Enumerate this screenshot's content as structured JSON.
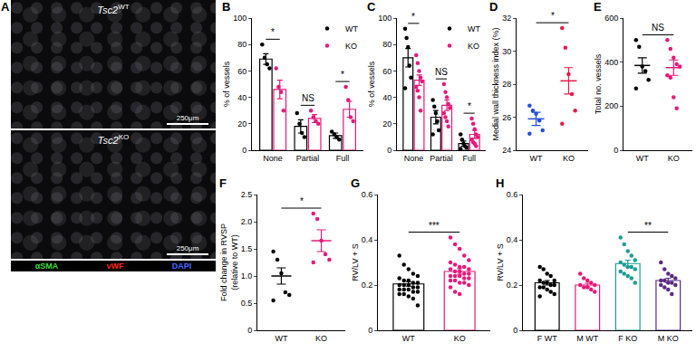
{
  "image_panel": {
    "panel": "A",
    "images": [
      {
        "gene": "Tsc2",
        "genotype": "WT",
        "scale_bar": "250μm"
      },
      {
        "gene": "Tsc2",
        "genotype": "KO",
        "scale_bar": "250μm"
      }
    ],
    "stains": [
      {
        "name": "αSMA",
        "color": "#3ddc3d"
      },
      {
        "name": "vWF",
        "color": "#ff2020"
      },
      {
        "name": "DAPI",
        "color": "#4a66ff"
      }
    ]
  },
  "chart_data": [
    {
      "panel": "B",
      "type": "bar",
      "ylabel": [
        "% of vessels"
      ],
      "categories": [
        "None",
        "Partial",
        "Full"
      ],
      "series": [
        {
          "name": "WT",
          "color": "#000000",
          "values": [
            69,
            18,
            11
          ],
          "errors": [
            4,
            5,
            2
          ],
          "points": [
            [
              80,
              70,
              65,
              62
            ],
            [
              28,
              20,
              13,
              10
            ],
            [
              14,
              12,
              10,
              8
            ]
          ]
        },
        {
          "name": "KO",
          "color": "#e6197a",
          "values": [
            46,
            24,
            31
          ],
          "errors": [
            7,
            3,
            6
          ],
          "points": [
            [
              62,
              48,
              44,
              30
            ],
            [
              30,
              25,
              22,
              20
            ],
            [
              48,
              38,
              25,
              22
            ]
          ]
        }
      ],
      "ylim": [
        0,
        100
      ],
      "yticks": [
        0,
        20,
        40,
        60,
        80,
        100
      ],
      "legend": "upper right",
      "significance": [
        {
          "category": "None",
          "text": "*"
        },
        {
          "category": "Partial",
          "text": "NS"
        },
        {
          "category": "Full",
          "text": "*"
        }
      ]
    },
    {
      "panel": "C",
      "type": "bar",
      "ylabel": [
        "% of vessels"
      ],
      "categories": [
        "None",
        "Partial",
        "Full"
      ],
      "series": [
        {
          "name": "WT",
          "color": "#000000",
          "values": [
            70,
            25,
            5
          ],
          "errors": [
            7,
            5,
            2
          ],
          "points": [
            [
              92,
              85,
              78,
              64,
              55,
              47
            ],
            [
              38,
              33,
              28,
              22,
              15,
              12
            ],
            [
              12,
              8,
              5,
              3,
              2,
              1
            ]
          ]
        },
        {
          "name": "KO",
          "color": "#e6197a",
          "values": [
            53,
            34,
            12
          ],
          "errors": [
            4,
            4,
            3
          ],
          "points": [
            [
              72,
              66,
              60,
              55,
              52,
              48,
              45,
              40,
              30
            ],
            [
              50,
              44,
              40,
              35,
              32,
              28,
              25,
              22,
              18
            ],
            [
              24,
              20,
              16,
              12,
              10,
              8,
              6,
              5,
              3
            ]
          ]
        }
      ],
      "ylim": [
        0,
        100
      ],
      "yticks": [
        0,
        20,
        40,
        60,
        80,
        100
      ],
      "legend": "upper right",
      "significance": [
        {
          "category": "None",
          "text": "*"
        },
        {
          "category": "Partial",
          "text": "NS"
        },
        {
          "category": "Full",
          "text": "*"
        }
      ]
    },
    {
      "panel": "D",
      "type": "dot_plot",
      "ylabel": [
        "Medial wall thickness index (%)"
      ],
      "categories": [
        "WT",
        "KO"
      ],
      "colors": [
        "#1f4fd6",
        "#e6194b"
      ],
      "values": [
        25.9,
        28.2
      ],
      "errors": [
        0.4,
        0.8
      ],
      "points": [
        [
          26.7,
          26.4,
          26.2,
          25.8,
          25.2,
          25.0
        ],
        [
          31.4,
          30.2,
          28.6,
          27.4,
          26.4,
          25.6
        ]
      ],
      "ylim": [
        24,
        32
      ],
      "yticks": [
        24,
        26,
        28,
        30,
        32
      ],
      "significance": [
        {
          "between": [
            "WT",
            "KO"
          ],
          "text": "*"
        }
      ]
    },
    {
      "panel": "E",
      "type": "dot_plot",
      "ylabel": [
        "Total no. vessels"
      ],
      "categories": [
        "WT",
        "KO"
      ],
      "colors": [
        "#000000",
        "#e6197a"
      ],
      "values": [
        385,
        375
      ],
      "errors": [
        35,
        35
      ],
      "points": [
        [
          500,
          470,
          380,
          360,
          320,
          280
        ],
        [
          500,
          460,
          420,
          390,
          380,
          340,
          330,
          240,
          190
        ]
      ],
      "ylim": [
        0,
        600
      ],
      "yticks": [
        0,
        200,
        400,
        600
      ],
      "significance": [
        {
          "between": [
            "WT",
            "KO"
          ],
          "text": "NS"
        }
      ]
    },
    {
      "panel": "F",
      "type": "dot_plot",
      "ylabel": [
        "Fold change in RVSP",
        "(relative to WT)"
      ],
      "categories": [
        "WT",
        "KO"
      ],
      "colors": [
        "#000000",
        "#e6197a"
      ],
      "values": [
        1.0,
        1.65
      ],
      "errors": [
        0.15,
        0.2
      ],
      "points": [
        [
          1.45,
          1.3,
          1.05,
          0.7,
          0.65,
          0.55
        ],
        [
          2.15,
          2.05,
          1.65,
          1.4,
          1.3,
          1.25
        ]
      ],
      "ylim": [
        0,
        2.5
      ],
      "yticks": [
        0,
        0.5,
        {
          "value": 1,
          "label": "1.0"
        },
        1.5,
        {
          "value": 2,
          "label": "2.0"
        },
        2.5
      ],
      "significance": [
        {
          "between": [
            "WT",
            "KO"
          ],
          "text": "*"
        }
      ]
    },
    {
      "panel": "G",
      "type": "bar",
      "ylabel": [
        "RV/LV + S"
      ],
      "categories": [
        "WT",
        "KO"
      ],
      "colors": [
        "#000000",
        "#e6197a"
      ],
      "values": [
        0.205,
        0.26
      ],
      "errors": [
        0.01,
        0.012
      ],
      "points": [
        [
          0.33,
          0.29,
          0.27,
          0.25,
          0.24,
          0.23,
          0.22,
          0.22,
          0.21,
          0.21,
          0.2,
          0.2,
          0.2,
          0.19,
          0.19,
          0.18,
          0.18,
          0.18,
          0.17,
          0.17,
          0.16,
          0.16,
          0.15,
          0.14,
          0.11
        ],
        [
          0.41,
          0.38,
          0.36,
          0.33,
          0.31,
          0.3,
          0.29,
          0.28,
          0.28,
          0.27,
          0.27,
          0.26,
          0.26,
          0.25,
          0.25,
          0.24,
          0.24,
          0.24,
          0.23,
          0.23,
          0.22,
          0.22,
          0.21,
          0.21,
          0.2,
          0.19,
          0.17,
          0.16
        ]
      ],
      "ylim": [
        0,
        0.6
      ],
      "yticks": [
        0,
        0.2,
        0.4,
        0.6
      ],
      "significance": [
        {
          "between": [
            "WT",
            "KO"
          ],
          "text": "***"
        }
      ]
    },
    {
      "panel": "H",
      "type": "bar",
      "ylabel": [
        "RV/LV + S"
      ],
      "categories": [
        "F WT",
        "M WT",
        "F KO",
        "M KO"
      ],
      "colors": [
        "#000000",
        "#e6197a",
        "#1a9e95",
        "#5b2a86"
      ],
      "values": [
        0.21,
        0.2,
        0.295,
        0.22
      ],
      "errors": [
        0.01,
        0.008,
        0.015,
        0.01
      ],
      "points": [
        [
          0.28,
          0.27,
          0.25,
          0.24,
          0.22,
          0.22,
          0.21,
          0.21,
          0.2,
          0.2,
          0.19,
          0.19,
          0.18,
          0.17,
          0.16,
          0.15
        ],
        [
          0.25,
          0.23,
          0.22,
          0.21,
          0.2,
          0.2,
          0.19,
          0.19,
          0.18,
          0.17
        ],
        [
          0.41,
          0.38,
          0.35,
          0.33,
          0.31,
          0.3,
          0.29,
          0.28,
          0.28,
          0.27,
          0.26,
          0.25,
          0.24,
          0.23,
          0.21
        ],
        [
          0.3,
          0.27,
          0.25,
          0.24,
          0.23,
          0.22,
          0.22,
          0.21,
          0.21,
          0.2,
          0.2,
          0.19,
          0.18,
          0.16
        ]
      ],
      "ylim": [
        0,
        0.6
      ],
      "yticks": [
        0,
        0.2,
        0.4,
        0.6
      ],
      "significance": [
        {
          "between": [
            "F KO",
            "M KO"
          ],
          "text": "**"
        }
      ]
    }
  ]
}
